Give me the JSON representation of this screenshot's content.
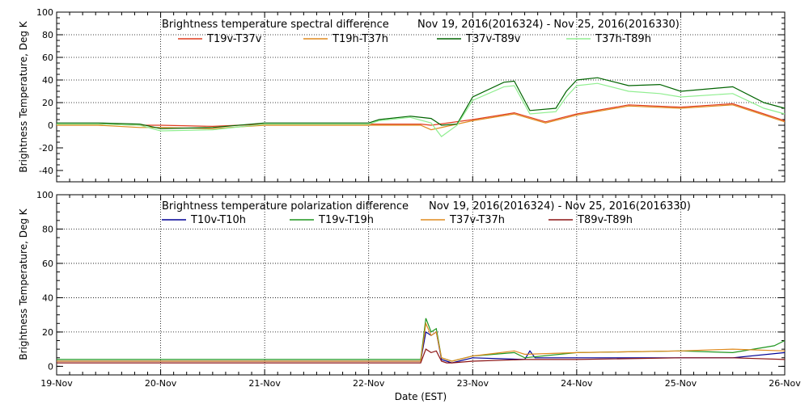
{
  "chart_data": [
    {
      "type": "line",
      "title_left": "Brightness temperature spectral difference",
      "title_right": "Nov 19, 2016(2016324) - Nov 25, 2016(2016330)",
      "ylabel": "Brightness Temperature, Deg K",
      "xlim": [
        0,
        7
      ],
      "ylim": [
        -50,
        100
      ],
      "yticks": [
        -40,
        -20,
        0,
        20,
        40,
        60,
        80,
        100
      ],
      "grid": true,
      "legend_placement": "top",
      "series": [
        {
          "name": "T19v-T37v",
          "color": "#e03c1e",
          "x": [
            0,
            0.4,
            0.8,
            1.0,
            1.5,
            2.0,
            2.5,
            3.0,
            3.5,
            3.6,
            4.0,
            4.4,
            4.7,
            5.0,
            5.5,
            6.0,
            6.5,
            6.8,
            7.0
          ],
          "y": [
            1,
            1,
            0,
            0,
            -1,
            1,
            1,
            1,
            1,
            0,
            5,
            11,
            3,
            10,
            18,
            16,
            19,
            10,
            4
          ]
        },
        {
          "name": "T19h-T37h",
          "color": "#e08a1e",
          "x": [
            0,
            0.4,
            0.8,
            1.0,
            1.5,
            2.0,
            2.5,
            3.0,
            3.5,
            3.6,
            4.0,
            4.4,
            4.7,
            5.0,
            5.5,
            6.0,
            6.5,
            6.8,
            7.0
          ],
          "y": [
            0,
            0,
            -2,
            -2,
            -3,
            0,
            0,
            0,
            0,
            -4,
            4,
            10,
            2,
            9,
            17,
            15,
            18,
            9,
            3
          ]
        },
        {
          "name": "T37v-T89v",
          "color": "#006400",
          "x": [
            0,
            0.4,
            0.8,
            1.0,
            1.5,
            2.0,
            2.5,
            3.0,
            3.1,
            3.4,
            3.6,
            3.7,
            3.85,
            4.0,
            4.3,
            4.4,
            4.55,
            4.8,
            4.9,
            5.0,
            5.2,
            5.5,
            5.8,
            6.0,
            6.5,
            6.8,
            7.0
          ],
          "y": [
            2,
            2,
            1,
            -3,
            -2,
            2,
            2,
            2,
            5,
            8,
            6,
            0,
            1,
            25,
            38,
            39,
            13,
            15,
            30,
            40,
            42,
            35,
            36,
            30,
            34,
            20,
            15
          ]
        },
        {
          "name": "T37h-T89h",
          "color": "#90ee90",
          "x": [
            0,
            0.4,
            0.8,
            1.0,
            1.5,
            2.0,
            2.5,
            3.0,
            3.1,
            3.4,
            3.6,
            3.7,
            3.85,
            4.0,
            4.3,
            4.4,
            4.55,
            4.8,
            4.9,
            5.0,
            5.2,
            5.5,
            5.8,
            6.0,
            6.5,
            6.8,
            7.0
          ],
          "y": [
            1,
            1,
            0,
            -5,
            -4,
            1,
            1,
            1,
            4,
            7,
            2,
            -10,
            0,
            22,
            34,
            35,
            10,
            12,
            25,
            35,
            37,
            30,
            28,
            25,
            28,
            15,
            10
          ]
        }
      ]
    },
    {
      "type": "line",
      "title_left": "Brightness temperature polarization difference",
      "title_right": "Nov 19, 2016(2016324) - Nov 25, 2016(2016330)",
      "ylabel": "Brightness Temperature, Deg K",
      "xlabel": "Date (EST)",
      "xlim": [
        0,
        7
      ],
      "ylim": [
        -5,
        100
      ],
      "yticks": [
        0,
        20,
        40,
        60,
        80,
        100
      ],
      "xticklabels": [
        "19-Nov",
        "20-Nov",
        "21-Nov",
        "22-Nov",
        "23-Nov",
        "24-Nov",
        "25-Nov",
        "26-Nov"
      ],
      "grid": true,
      "legend_placement": "top",
      "series": [
        {
          "name": "T10v-T10h",
          "color": "#000096",
          "x": [
            0,
            1.0,
            2.0,
            3.0,
            3.5,
            3.55,
            3.6,
            3.65,
            3.7,
            3.75,
            3.8,
            4.0,
            4.5,
            4.55,
            4.6,
            5.0,
            6.0,
            6.5,
            7.0
          ],
          "y": [
            3,
            3,
            3,
            3,
            3,
            20,
            18,
            20,
            4,
            3,
            2,
            5,
            4,
            9,
            5,
            5,
            5,
            5,
            8
          ]
        },
        {
          "name": "T19v-T19h",
          "color": "#1e961e",
          "x": [
            0,
            1.0,
            2.0,
            3.0,
            3.5,
            3.55,
            3.6,
            3.65,
            3.7,
            3.75,
            3.8,
            4.0,
            4.4,
            4.5,
            5.0,
            6.0,
            6.5,
            6.9,
            7.0
          ],
          "y": [
            4,
            4,
            4,
            4,
            4,
            28,
            20,
            22,
            5,
            4,
            3,
            6,
            8,
            5,
            8,
            9,
            8,
            12,
            15
          ]
        },
        {
          "name": "T37v-T37h",
          "color": "#e08a1e",
          "x": [
            0,
            1.0,
            2.0,
            3.0,
            3.5,
            3.55,
            3.6,
            3.65,
            3.7,
            3.75,
            3.8,
            4.0,
            4.4,
            4.5,
            5.0,
            6.0,
            6.5,
            7.0
          ],
          "y": [
            3,
            3,
            3,
            3,
            3,
            25,
            18,
            20,
            5,
            4,
            3,
            6,
            9,
            7,
            8,
            9,
            10,
            9
          ]
        },
        {
          "name": "T89v-T89h",
          "color": "#8c1414",
          "x": [
            0,
            1.0,
            2.0,
            3.0,
            3.5,
            3.55,
            3.6,
            3.65,
            3.7,
            3.75,
            3.8,
            4.0,
            4.5,
            5.0,
            6.0,
            6.5,
            7.0
          ],
          "y": [
            2,
            2,
            2,
            2,
            2,
            10,
            8,
            9,
            3,
            2,
            2,
            3,
            4,
            4,
            5,
            5,
            4
          ]
        }
      ]
    }
  ]
}
